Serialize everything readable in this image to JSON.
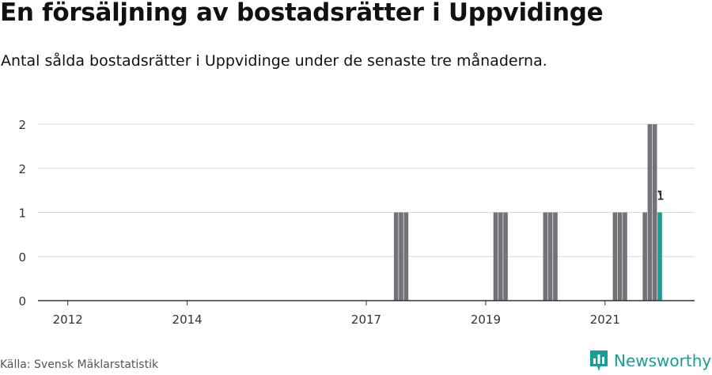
{
  "header": {
    "title": "En försäljning av bostadsrätter i Uppvidinge",
    "subtitle": "Antal sålda bostadsrätter i Uppvidinge under de senaste tre månaderna."
  },
  "footer": {
    "source": "Källa: Svensk Mäklarstatistik",
    "brand": "Newsworthy",
    "brand_icon": "bar-chart-logo-icon"
  },
  "colors": {
    "bar": "#737278",
    "highlight": "#1a9e93",
    "grid": "#d9d9d9",
    "axis": "#333333"
  },
  "chart_data": {
    "type": "bar",
    "title": "En försäljning av bostadsrätter i Uppvidinge",
    "xlabel": "",
    "ylabel": "",
    "ylim": [
      0,
      2
    ],
    "y_ticks": [
      {
        "value": 0,
        "label": "0"
      },
      {
        "value": 0.5,
        "label": "0"
      },
      {
        "value": 1,
        "label": "1"
      },
      {
        "value": 1.5,
        "label": "2"
      },
      {
        "value": 2,
        "label": "2"
      }
    ],
    "x_ticks": [
      {
        "value": 2012,
        "label": "2012"
      },
      {
        "value": 2014,
        "label": "2014"
      },
      {
        "value": 2017,
        "label": "2017"
      },
      {
        "value": 2019,
        "label": "2019"
      },
      {
        "value": 2021,
        "label": "2021"
      }
    ],
    "x_range": [
      2011.5,
      2022.5
    ],
    "grid": true,
    "bar_width_years": 0.075,
    "bars": [
      {
        "x": 2017.5,
        "value": 1
      },
      {
        "x": 2017.583,
        "value": 1
      },
      {
        "x": 2017.667,
        "value": 1
      },
      {
        "x": 2019.167,
        "value": 1
      },
      {
        "x": 2019.25,
        "value": 1
      },
      {
        "x": 2019.333,
        "value": 1
      },
      {
        "x": 2020.0,
        "value": 1
      },
      {
        "x": 2020.083,
        "value": 1
      },
      {
        "x": 2020.167,
        "value": 1
      },
      {
        "x": 2021.167,
        "value": 1
      },
      {
        "x": 2021.25,
        "value": 1
      },
      {
        "x": 2021.333,
        "value": 1
      },
      {
        "x": 2021.667,
        "value": 1
      },
      {
        "x": 2021.75,
        "value": 2
      },
      {
        "x": 2021.833,
        "value": 2
      },
      {
        "x": 2021.917,
        "value": 1,
        "highlight": true,
        "label": "1"
      }
    ]
  }
}
